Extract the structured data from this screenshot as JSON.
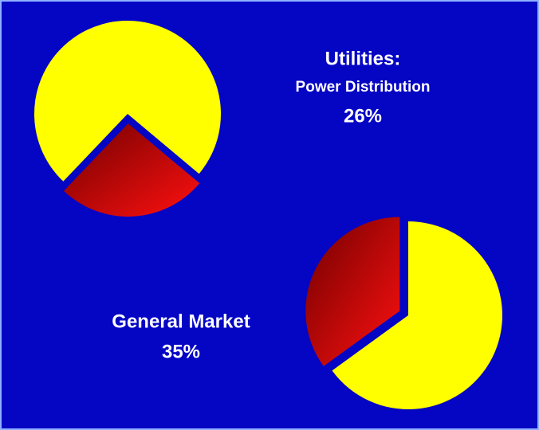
{
  "chart_data": [
    {
      "type": "pie",
      "title": "Utilities:",
      "subtitle": "Power Distribution",
      "values": [
        26,
        74
      ],
      "value_labels": [
        "26%",
        null
      ],
      "colors": [
        "#c00000",
        "#ffff00"
      ]
    },
    {
      "type": "pie",
      "title": "General Market",
      "values": [
        35,
        65
      ],
      "value_labels": [
        "35%",
        null
      ],
      "colors": [
        "#c00000",
        "#ffff00"
      ]
    }
  ]
}
